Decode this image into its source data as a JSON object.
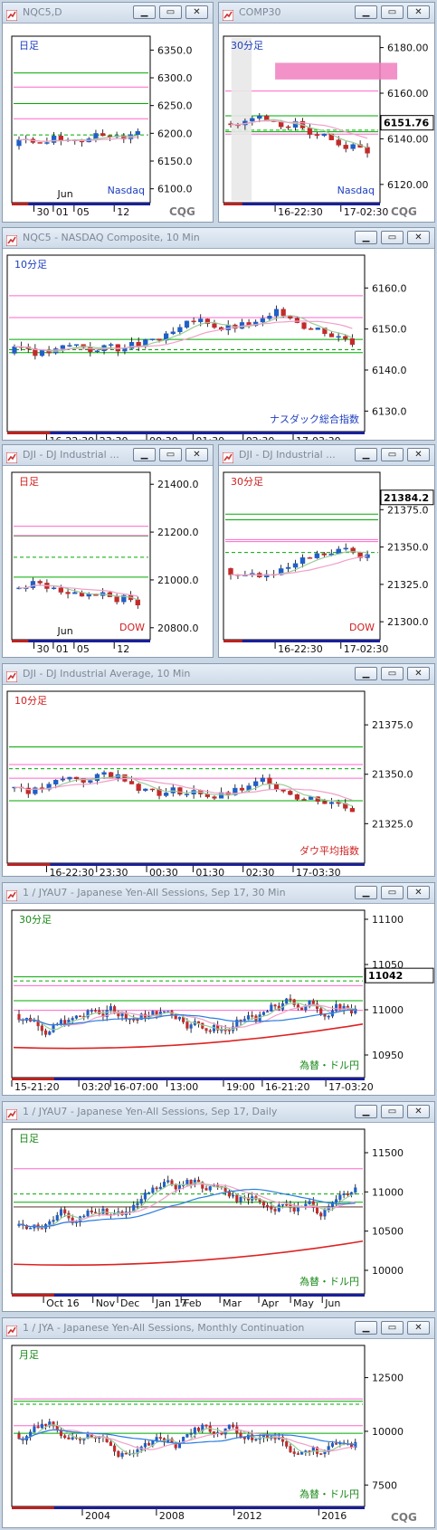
{
  "colors": {
    "up": "#1f5fc7",
    "down": "#c42a2a",
    "green_line": "#00aa00",
    "pink_line": "#ff66cc",
    "blue_line": "#2a7de1",
    "red_line": "#dd2222",
    "band": "#f07fc0"
  },
  "icons": {
    "window_icon": "cqg-logo-icon",
    "btn1": "minimize-icon",
    "btn2": "restore-icon",
    "btn3": "close-icon"
  },
  "watermark": "CQG",
  "windows": [
    {
      "title": "NQC5,D",
      "label": "日足",
      "symbol": "Nasdaq",
      "yticks": [
        "6350.0",
        "6300.0",
        "6250.0",
        "6200.0",
        "6150.0",
        "6100.0"
      ],
      "xticks": [
        "30",
        "01",
        "05",
        "12"
      ],
      "xmonth": "Jun",
      "chart_data": {
        "type": "candlestick",
        "label": "日足",
        "x": [
          "30",
          "01",
          "05",
          "12"
        ],
        "ylim": [
          6075,
          6375
        ]
      }
    },
    {
      "title": "COMP30",
      "label": "30分足",
      "symbol": "Nasdaq",
      "yticks": [
        "6180.00",
        "6160.00",
        "6140.00",
        "6120.00"
      ],
      "price_badge": "6151.76",
      "xticks": [
        "16-22:30",
        "17-02:30"
      ],
      "chart_data": {
        "type": "candlestick",
        "label": "30分足",
        "last": 6151.76,
        "x": [
          "16-22:30",
          "17-02:30"
        ],
        "ylim": [
          6112,
          6185
        ]
      }
    },
    {
      "title": "NQC5 - NASDAQ Composite, 10 Min",
      "label": "10分足",
      "symbol": "ナスダック総合指数",
      "yticks": [
        "6160.0",
        "6150.0",
        "6140.0",
        "6130.0"
      ],
      "xticks": [
        "16-22:30",
        "23:30",
        "00:30",
        "01:30",
        "02:30",
        "17-03:30"
      ],
      "chart_data": {
        "type": "candlestick",
        "label": "10分足",
        "x": [
          "16-22:30",
          "23:30",
          "00:30",
          "01:30",
          "02:30",
          "17-03:30"
        ],
        "ylim": [
          6125,
          6168
        ]
      }
    },
    {
      "title": "DJI - DJ Industrial ...",
      "label": "日足",
      "symbol": "DOW",
      "yticks": [
        "21400.0",
        "21200.0",
        "21000.0",
        "20800.0"
      ],
      "xticks": [
        "30",
        "01",
        "05",
        "12"
      ],
      "xmonth": "Jun",
      "chart_data": {
        "type": "candlestick",
        "label": "日足",
        "x": [
          "30",
          "01",
          "05",
          "12"
        ],
        "ylim": [
          20750,
          21450
        ]
      }
    },
    {
      "title": "DJI - DJ Industrial ...",
      "label": "30分足",
      "symbol": "DOW",
      "yticks": [
        "21375.0",
        "21350.0",
        "21325.0",
        "21300.0"
      ],
      "price_badge": "21384.2",
      "xticks": [
        "16-22:30",
        "17-02:30"
      ],
      "chart_data": {
        "type": "candlestick",
        "label": "30分足",
        "last": 21384.2,
        "x": [
          "16-22:30",
          "17-02:30"
        ],
        "ylim": [
          21288,
          21400
        ]
      }
    },
    {
      "title": "DJI - DJ Industrial Average, 10 Min",
      "label": "10分足",
      "symbol": "ダウ平均指数",
      "yticks": [
        "21375.0",
        "21350.0",
        "21325.0"
      ],
      "xticks": [
        "16-22:30",
        "23:30",
        "00:30",
        "01:30",
        "02:30",
        "17-03:30"
      ],
      "chart_data": {
        "type": "candlestick",
        "label": "10分足",
        "x": [
          "16-22:30",
          "23:30",
          "00:30",
          "01:30",
          "02:30",
          "17-03:30"
        ],
        "ylim": [
          21305,
          21392
        ]
      }
    },
    {
      "title": "1 / JYAU7 - Japanese Yen-All Sessions, Sep 17, 30 Min",
      "label": "30分足",
      "symbol": "為替・ドル円",
      "yticks": [
        "11100",
        "11050",
        "11000",
        "10950"
      ],
      "price_badge": "11042",
      "xticks": [
        "15-21:20",
        "03:20",
        "16-07:00",
        "13:00",
        "19:00",
        "16-21:20",
        "17-03:20"
      ],
      "chart_data": {
        "type": "candlestick",
        "label": "30分足",
        "last": 11042,
        "x": [
          "15-21:20",
          "03:20",
          "16-07:00",
          "13:00",
          "19:00",
          "16-21:20",
          "17-03:20"
        ],
        "ylim": [
          10925,
          11110
        ]
      }
    },
    {
      "title": "1 / JYAU7 - Japanese Yen-All Sessions, Sep 17, Daily",
      "label": "日足",
      "symbol": "為替・ドル円",
      "yticks": [
        "11500",
        "11000",
        "10500",
        "10000"
      ],
      "xticks": [
        "Oct 16",
        "Nov",
        "Dec",
        "Jan 17",
        "Feb",
        "Mar",
        "Apr",
        "May",
        "Jun"
      ],
      "chart_data": {
        "type": "candlestick",
        "label": "日足",
        "x": [
          "Oct 16",
          "Nov",
          "Dec",
          "Jan 17",
          "Feb",
          "Mar",
          "Apr",
          "May",
          "Jun"
        ],
        "ylim": [
          9700,
          11800
        ]
      }
    },
    {
      "title": "1 / JYA - Japanese Yen-All Sessions, Monthly Continuation",
      "label": "月足",
      "symbol": "為替・ドル円",
      "yticks": [
        "12500",
        "10000",
        "7500"
      ],
      "xticks": [
        "2004",
        "2008",
        "2012",
        "2016"
      ],
      "chart_data": {
        "type": "candlestick",
        "label": "月足",
        "x": [
          "2004",
          "2008",
          "2012",
          "2016"
        ],
        "ylim": [
          6500,
          14000
        ]
      }
    }
  ]
}
